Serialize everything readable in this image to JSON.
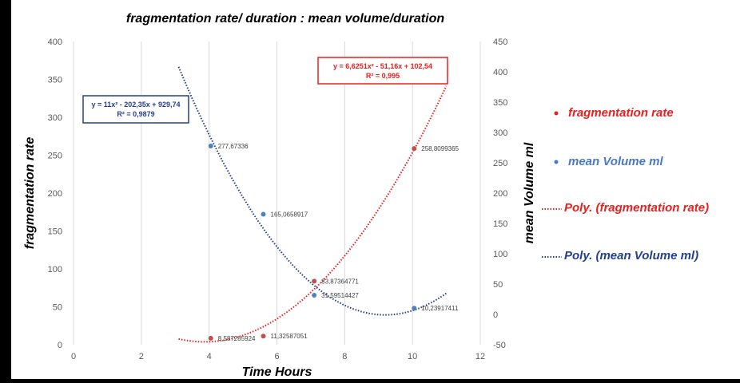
{
  "chart_data": {
    "type": "scatter",
    "title": "fragmentation rate/ duration : mean volume/duration",
    "xlabel": "Time Hours",
    "ylabel_left": "fragmentation rate",
    "ylabel_right": "mean Volume ml",
    "xlim": [
      0,
      12
    ],
    "xticks": [
      "0",
      "2",
      "4",
      "6",
      "8",
      "10",
      "12"
    ],
    "ylim_left": [
      0,
      400
    ],
    "yticks_left": [
      "0",
      "50",
      "100",
      "150",
      "200",
      "250",
      "300",
      "350",
      "400"
    ],
    "ylim_right": [
      -50,
      450
    ],
    "yticks_right": [
      "-50",
      "0",
      "50",
      "100",
      "150",
      "200",
      "250",
      "300",
      "350",
      "400",
      "450"
    ],
    "grid": "vertical",
    "legend_position": "right",
    "colors": {
      "red": "#e8201f",
      "blue": "#4a78c4",
      "navy": "#243f8c",
      "background": "#ffffff"
    },
    "series": [
      {
        "name": "fragmentation rate",
        "axis": "left",
        "color": "#c0504d",
        "x": [
          4.05,
          5.6,
          7.1,
          10.05
        ],
        "y": [
          8.587285924,
          11.32587051,
          83.87364771,
          258.8099365
        ],
        "labels": [
          "8,587285924",
          "11,32587051",
          "83,87364771",
          "258,8099365"
        ]
      },
      {
        "name": "mean Volume ml",
        "axis": "right",
        "color": "#4f81bd",
        "x": [
          4.05,
          5.6,
          7.1,
          10.05
        ],
        "y": [
          277.67336,
          165.0658917,
          31.59514427,
          10.23917411
        ],
        "labels": [
          "277,67336",
          "165,0658917",
          "31,59514427",
          "10,23917411"
        ]
      }
    ],
    "trendlines": [
      {
        "name": "Poly. (fragmentation rate)",
        "axis": "left",
        "color": "#e8201f",
        "coefficients": [
          6.6251,
          -51.16,
          102.54
        ],
        "x_range": [
          3.1,
          11
        ],
        "equation": "y = 6,6251x² - 51,16x + 102,54",
        "r2": "R² = 0,995"
      },
      {
        "name": "Poly. (mean Volume ml)",
        "axis": "right",
        "color": "#243f8c",
        "coefficients": [
          11,
          -202.35,
          929.74
        ],
        "x_range": [
          3.1,
          11
        ],
        "equation": "y = 11x² - 202,35x + 929,74",
        "r2": "R² = 0,9879"
      }
    ]
  }
}
